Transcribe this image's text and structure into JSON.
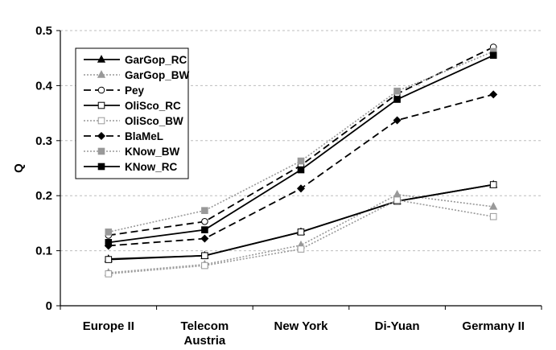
{
  "chart_data": {
    "type": "line",
    "title": "",
    "xlabel": "",
    "ylabel": "Q",
    "categories": [
      "Europe II",
      "Telecom|Austria",
      "New York",
      "Di-Yuan",
      "Germany II"
    ],
    "ylim": [
      0,
      0.5
    ],
    "yticks": [
      "0",
      "0.1",
      "0.2",
      "0.3",
      "0.4",
      "0.5"
    ],
    "grid": "horizontal-dashed",
    "legend_position": "top-left",
    "series": [
      {
        "name": "GarGop_RC",
        "values": [
          0.085,
          0.091,
          0.134,
          0.19,
          0.22
        ],
        "color": "#000000",
        "dash": "solid",
        "marker": "triangle",
        "fill": "filled"
      },
      {
        "name": "GarGop_BW",
        "values": [
          0.06,
          0.075,
          0.11,
          0.202,
          0.18
        ],
        "color": "#999999",
        "dash": "dotted",
        "marker": "triangle",
        "fill": "filled"
      },
      {
        "name": "Pey",
        "values": [
          0.128,
          0.153,
          0.255,
          0.385,
          0.47
        ],
        "color": "#000000",
        "dash": "dashed",
        "marker": "circle",
        "fill": "open"
      },
      {
        "name": "OliSco_RC",
        "values": [
          0.084,
          0.091,
          0.134,
          0.19,
          0.22
        ],
        "color": "#000000",
        "dash": "solid",
        "marker": "square",
        "fill": "open"
      },
      {
        "name": "OliSco_BW",
        "values": [
          0.058,
          0.073,
          0.103,
          0.192,
          0.162
        ],
        "color": "#999999",
        "dash": "dotted",
        "marker": "square",
        "fill": "open"
      },
      {
        "name": "BlaMeL",
        "values": [
          0.109,
          0.122,
          0.213,
          0.337,
          0.384
        ],
        "color": "#000000",
        "dash": "dashed",
        "marker": "diamond",
        "fill": "filled"
      },
      {
        "name": "KNow_BW",
        "values": [
          0.134,
          0.173,
          0.263,
          0.39,
          0.462
        ],
        "color": "#999999",
        "dash": "dotted",
        "marker": "square",
        "fill": "filled"
      },
      {
        "name": "KNow_RC",
        "values": [
          0.115,
          0.138,
          0.247,
          0.375,
          0.455
        ],
        "color": "#000000",
        "dash": "solid",
        "marker": "square",
        "fill": "filled"
      }
    ]
  }
}
